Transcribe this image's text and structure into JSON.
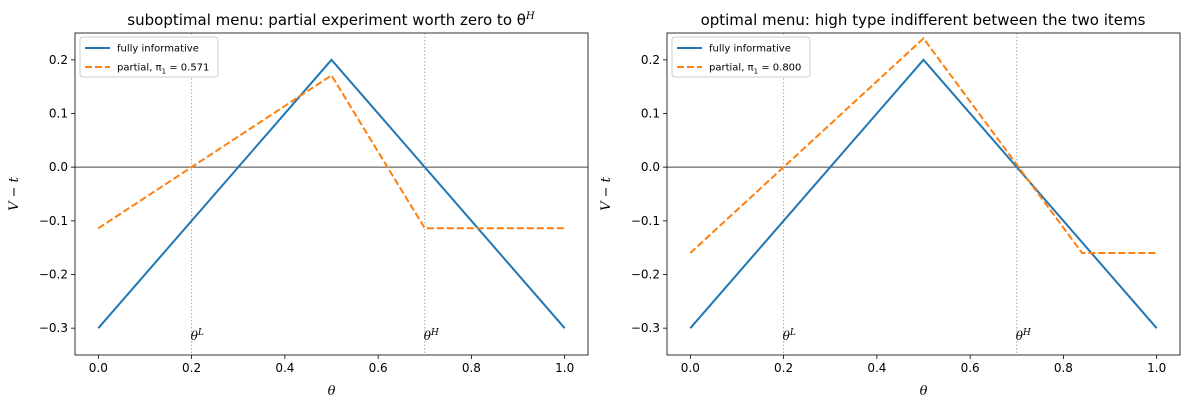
{
  "chart_data": [
    {
      "type": "line",
      "title": "suboptimal menu: partial experiment worth zero to θ",
      "title_sup": "H",
      "xlabel": "θ",
      "ylabel": "V − t",
      "xlim": [
        -0.05,
        1.05
      ],
      "ylim": [
        -0.35,
        0.25
      ],
      "xticks": [
        0.0,
        0.2,
        0.4,
        0.6,
        0.8,
        1.0
      ],
      "xtick_labels": [
        "0.0",
        "0.2",
        "0.4",
        "0.6",
        "0.8",
        "1.0"
      ],
      "yticks": [
        -0.3,
        -0.2,
        -0.1,
        0.0,
        0.1,
        0.2
      ],
      "ytick_labels": [
        "−0.3",
        "−0.2",
        "−0.1",
        "0.0",
        "0.1",
        "0.2"
      ],
      "grid": false,
      "legend_position": "top-left",
      "hline": 0.0,
      "vlines": [
        {
          "x": 0.2,
          "label": "θ",
          "sup": "L",
          "label_y": -0.315
        },
        {
          "x": 0.7,
          "label": "θ",
          "sup": "H",
          "label_y": -0.315
        }
      ],
      "series": [
        {
          "name": "fully informative",
          "style": "solid",
          "color": "#1f77b4",
          "x": [
            0.0,
            0.5,
            1.0
          ],
          "y": [
            -0.3,
            0.2,
            -0.3
          ]
        },
        {
          "name": "partial, π",
          "name_sub": "1",
          "name_suffix": " = 0.571",
          "style": "dashed",
          "color": "#ff7f0e",
          "x": [
            0.0,
            0.5,
            0.7,
            1.0
          ],
          "y": [
            -0.114,
            0.171,
            -0.114,
            -0.114
          ]
        }
      ]
    },
    {
      "type": "line",
      "title": "optimal menu: high type indifferent between the two items",
      "title_sup": "",
      "xlabel": "θ",
      "ylabel": "V − t",
      "xlim": [
        -0.05,
        1.05
      ],
      "ylim": [
        -0.35,
        0.25
      ],
      "xticks": [
        0.0,
        0.2,
        0.4,
        0.6,
        0.8,
        1.0
      ],
      "xtick_labels": [
        "0.0",
        "0.2",
        "0.4",
        "0.6",
        "0.8",
        "1.0"
      ],
      "yticks": [
        -0.3,
        -0.2,
        -0.1,
        0.0,
        0.1,
        0.2
      ],
      "ytick_labels": [
        "−0.3",
        "−0.2",
        "−0.1",
        "0.0",
        "0.1",
        "0.2"
      ],
      "grid": false,
      "legend_position": "top-left",
      "hline": 0.0,
      "vlines": [
        {
          "x": 0.2,
          "label": "θ",
          "sup": "L",
          "label_y": -0.315
        },
        {
          "x": 0.7,
          "label": "θ",
          "sup": "H",
          "label_y": -0.315
        }
      ],
      "series": [
        {
          "name": "fully informative",
          "style": "solid",
          "color": "#1f77b4",
          "x": [
            0.0,
            0.5,
            1.0
          ],
          "y": [
            -0.3,
            0.2,
            -0.3
          ]
        },
        {
          "name": "partial, π",
          "name_sub": "1",
          "name_suffix": " = 0.800",
          "style": "dashed",
          "color": "#ff7f0e",
          "x": [
            0.0,
            0.5,
            0.84,
            1.0
          ],
          "y": [
            -0.16,
            0.24,
            -0.16,
            -0.16
          ]
        }
      ]
    }
  ],
  "colors": {
    "axis": "#000000",
    "zero_line": "#444444",
    "vline": "#aaaaaa",
    "legend_border": "#cccccc"
  }
}
